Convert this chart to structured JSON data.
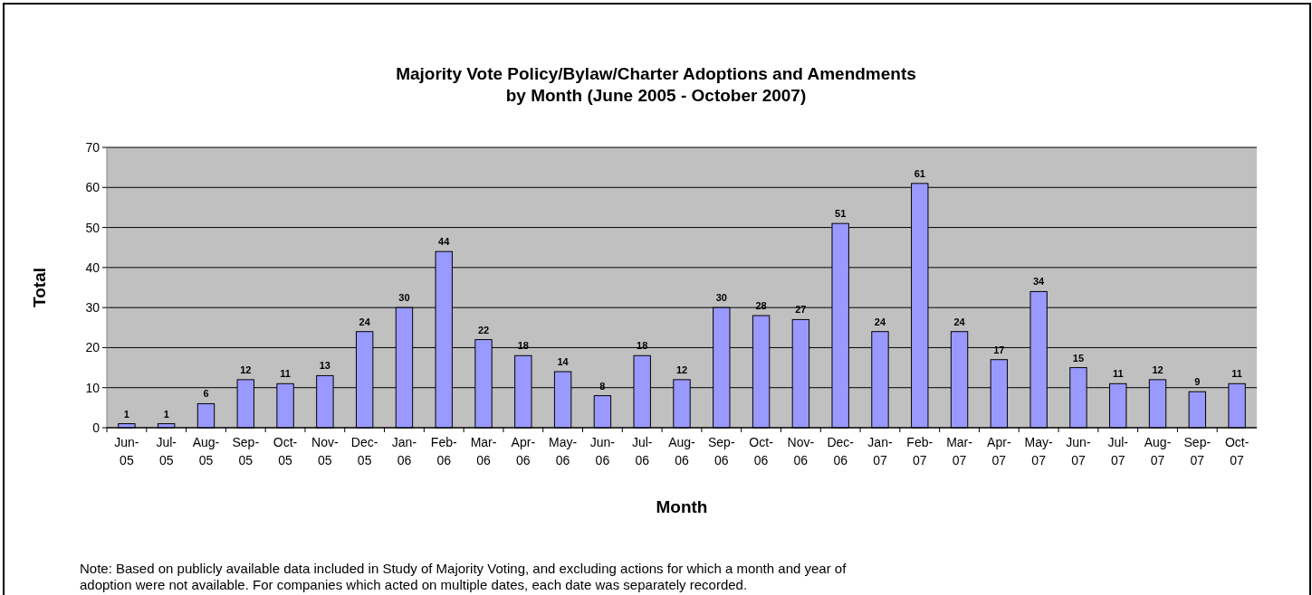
{
  "chart_data": {
    "type": "bar",
    "title": "Majority Vote Policy/Bylaw/Charter Adoptions and Amendments\nby Month  (June 2005 - October 2007)",
    "xlabel": "Month",
    "ylabel": "Total",
    "categories": [
      "Jun-05",
      "Jul-05",
      "Aug-05",
      "Sep-05",
      "Oct-05",
      "Nov-05",
      "Dec-05",
      "Jan-06",
      "Feb-06",
      "Mar-06",
      "Apr-06",
      "May-06",
      "Jun-06",
      "Jul-06",
      "Aug-06",
      "Sep-06",
      "Oct-06",
      "Nov-06",
      "Dec-06",
      "Jan-07",
      "Feb-07",
      "Mar-07",
      "Apr-07",
      "May-07",
      "Jun-07",
      "Jul-07",
      "Aug-07",
      "Sep-07",
      "Oct-07"
    ],
    "values": [
      1,
      1,
      6,
      12,
      11,
      13,
      24,
      30,
      44,
      22,
      18,
      14,
      8,
      18,
      12,
      30,
      28,
      27,
      51,
      24,
      61,
      24,
      17,
      34,
      15,
      11,
      12,
      9,
      11
    ],
    "color": "#9999ff",
    "ylim": [
      0,
      70
    ],
    "yticks": [
      0,
      10,
      20,
      30,
      40,
      50,
      60,
      70
    ],
    "grid": "y",
    "data_labels": true,
    "annotations": [
      "Note: Based on publicly available data included in Study of Majority Voting, and excluding actions for which a month and year of adoption were not available. For companies which acted on multiple dates, each date was separately recorded."
    ]
  }
}
